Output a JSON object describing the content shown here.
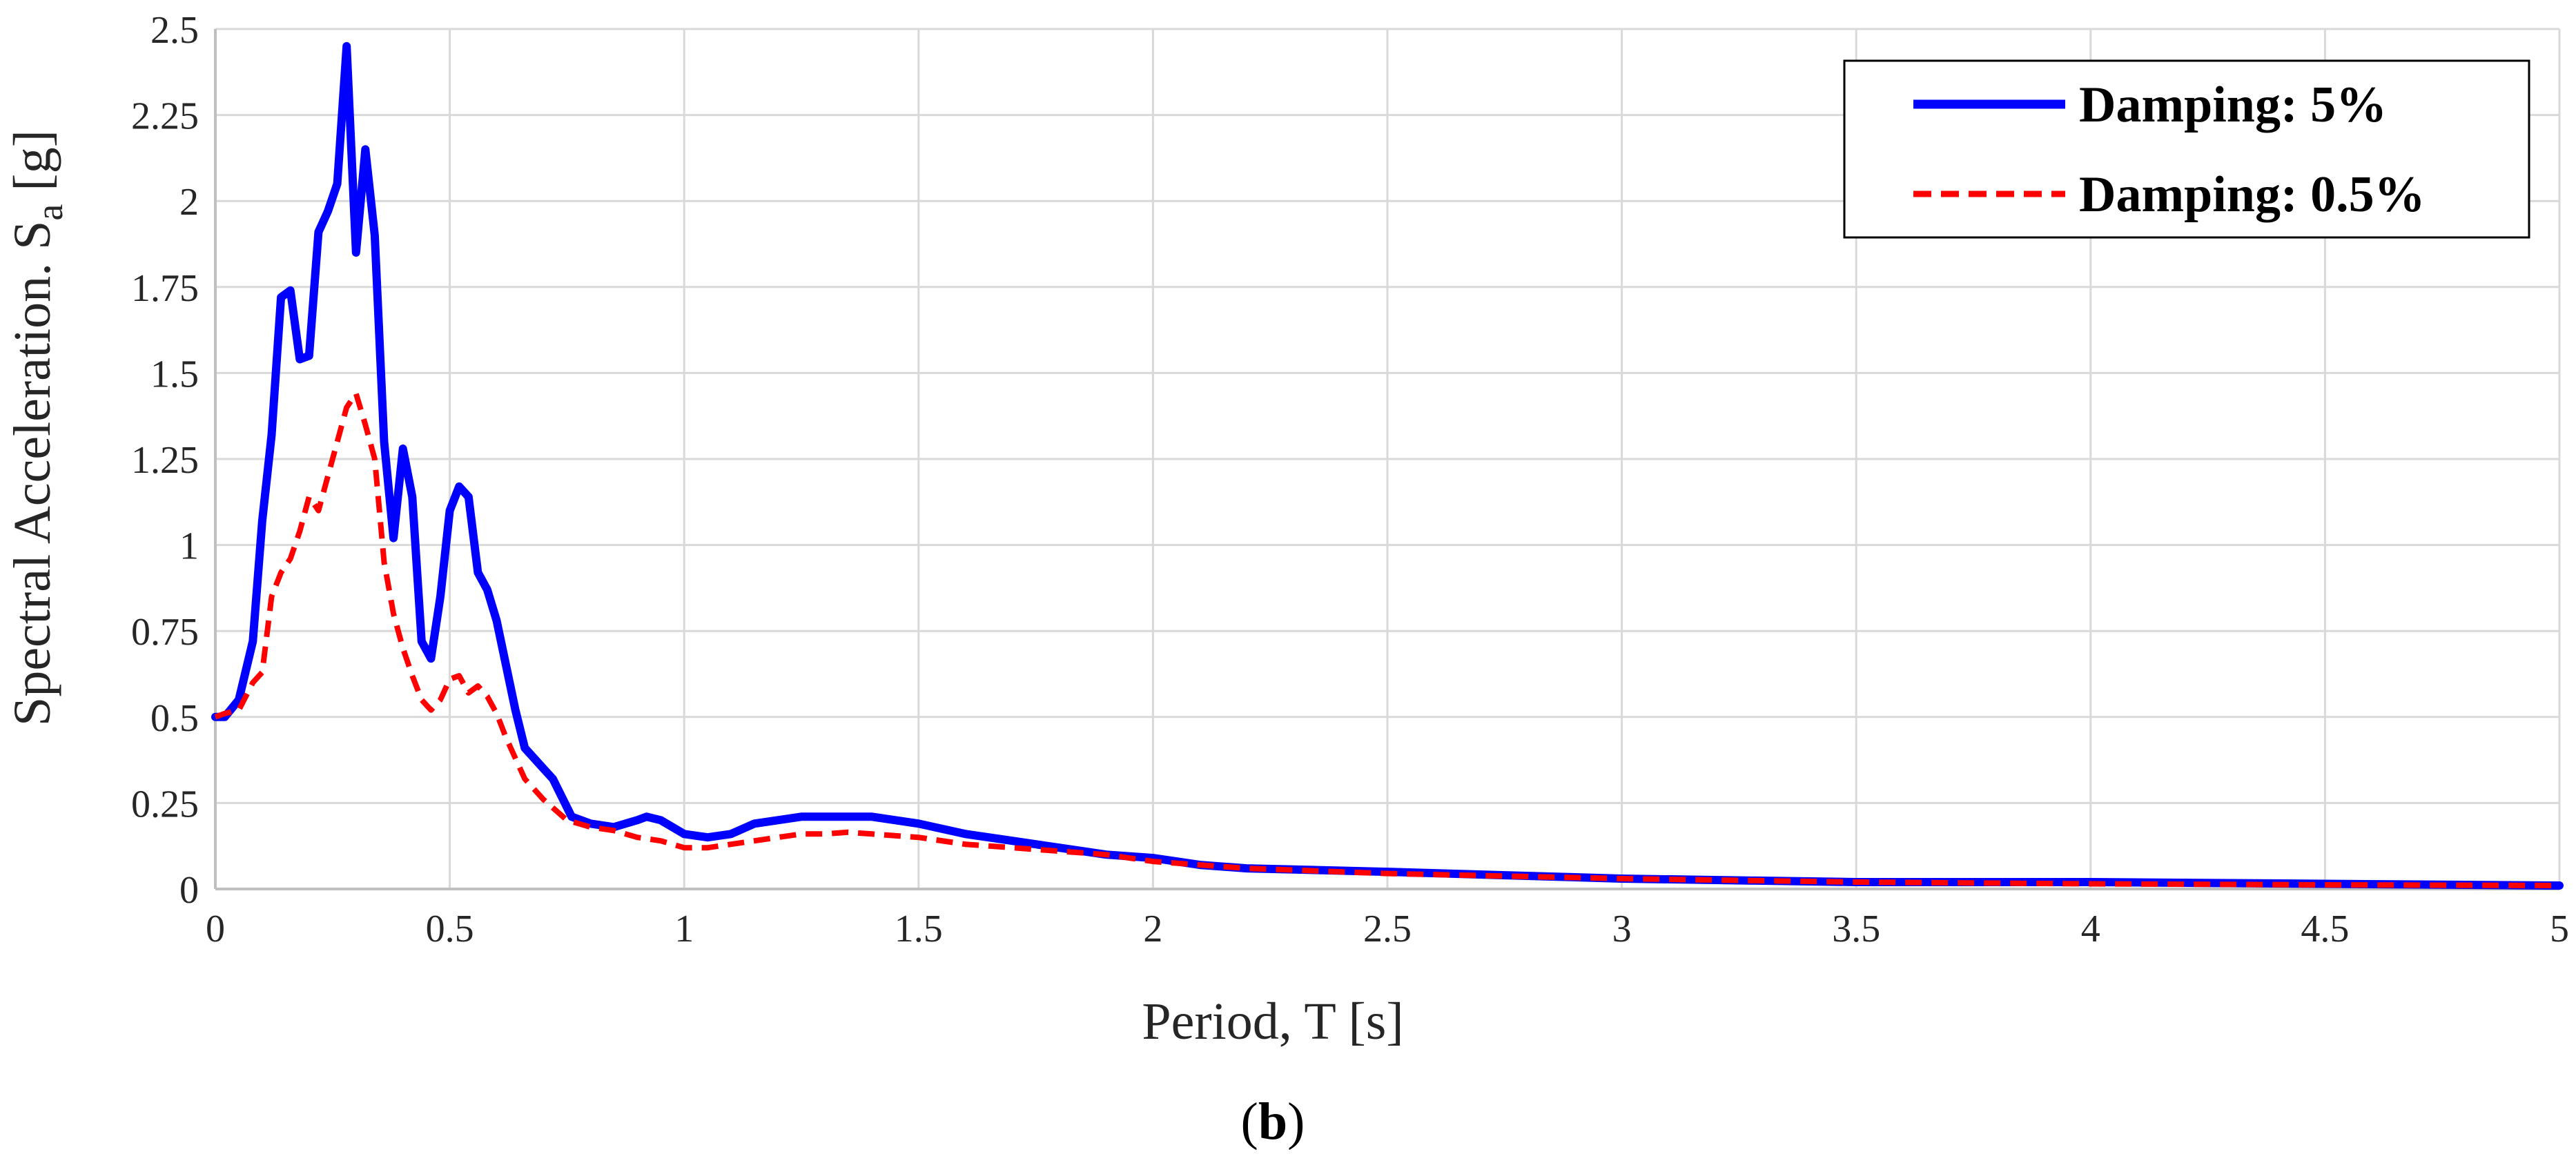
{
  "chart_data": {
    "type": "line",
    "xlabel": "Period, T [s]",
    "ylabel": "Spectral Acceleration. S",
    "ylabel_subscript": "a",
    "ylabel_suffix": " [g]",
    "caption": {
      "open": "(",
      "letter": "b",
      "close": ")"
    },
    "xlim": [
      0,
      5
    ],
    "ylim": [
      0,
      2.5
    ],
    "xticks": [
      0,
      0.5,
      1,
      1.5,
      2,
      2.5,
      3,
      3.5,
      4,
      4.5,
      5
    ],
    "xtick_labels": [
      "0",
      "0.5",
      "1",
      "1.5",
      "2",
      "2.5",
      "3",
      "3.5",
      "4",
      "4.5",
      "5"
    ],
    "yticks": [
      0,
      0.25,
      0.5,
      0.75,
      1,
      1.25,
      1.5,
      1.75,
      2,
      2.25,
      2.5
    ],
    "ytick_labels": [
      "0",
      "0.25",
      "0.5",
      "0.75",
      "1",
      "1.25",
      "1.5",
      "1.75",
      "2",
      "2.25",
      "2.5"
    ],
    "grid": true,
    "legend_position": "top-right",
    "colors": {
      "damping5": "#0000ff",
      "damping05": "#ff0000",
      "grid": "#d9d9d9",
      "axis": "#bfbfbf"
    },
    "series": [
      {
        "name": "Damping: 5%",
        "style": "solid",
        "x": [
          0,
          0.02,
          0.05,
          0.08,
          0.1,
          0.12,
          0.14,
          0.16,
          0.18,
          0.2,
          0.22,
          0.24,
          0.26,
          0.28,
          0.3,
          0.32,
          0.34,
          0.36,
          0.38,
          0.4,
          0.42,
          0.44,
          0.46,
          0.48,
          0.5,
          0.52,
          0.54,
          0.56,
          0.58,
          0.6,
          0.62,
          0.64,
          0.66,
          0.7,
          0.72,
          0.76,
          0.8,
          0.85,
          0.9,
          0.92,
          0.95,
          1.0,
          1.05,
          1.1,
          1.15,
          1.2,
          1.25,
          1.3,
          1.35,
          1.4,
          1.5,
          1.6,
          1.7,
          1.8,
          1.9,
          2.0,
          2.1,
          2.2,
          2.5,
          3.0,
          3.5,
          4.0,
          4.5,
          5.0
        ],
        "y": [
          0.5,
          0.5,
          0.55,
          0.72,
          1.07,
          1.32,
          1.72,
          1.74,
          1.54,
          1.55,
          1.91,
          1.97,
          2.05,
          2.45,
          1.85,
          2.15,
          1.9,
          1.3,
          1.02,
          1.28,
          1.14,
          0.72,
          0.67,
          0.85,
          1.1,
          1.17,
          1.14,
          0.92,
          0.87,
          0.78,
          0.65,
          0.52,
          0.41,
          0.35,
          0.32,
          0.21,
          0.19,
          0.18,
          0.2,
          0.21,
          0.2,
          0.16,
          0.15,
          0.16,
          0.19,
          0.2,
          0.21,
          0.21,
          0.21,
          0.21,
          0.19,
          0.16,
          0.14,
          0.12,
          0.1,
          0.09,
          0.07,
          0.06,
          0.05,
          0.03,
          0.02,
          0.02,
          0.015,
          0.01
        ]
      },
      {
        "name": "Damping: 0.5%",
        "style": "dashed",
        "x": [
          0,
          0.02,
          0.05,
          0.08,
          0.1,
          0.12,
          0.14,
          0.16,
          0.18,
          0.2,
          0.22,
          0.24,
          0.26,
          0.28,
          0.3,
          0.32,
          0.34,
          0.36,
          0.38,
          0.4,
          0.42,
          0.44,
          0.46,
          0.48,
          0.5,
          0.52,
          0.54,
          0.56,
          0.58,
          0.6,
          0.62,
          0.64,
          0.66,
          0.7,
          0.75,
          0.8,
          0.85,
          0.9,
          0.95,
          1.0,
          1.05,
          1.1,
          1.15,
          1.2,
          1.25,
          1.3,
          1.35,
          1.4,
          1.5,
          1.6,
          1.7,
          1.8,
          1.9,
          2.0,
          2.1,
          2.2,
          2.5,
          3.0,
          3.5,
          4.0,
          4.5,
          5.0
        ],
        "y": [
          0.5,
          0.51,
          0.52,
          0.6,
          0.63,
          0.85,
          0.92,
          0.96,
          1.04,
          1.14,
          1.1,
          1.2,
          1.3,
          1.4,
          1.44,
          1.35,
          1.25,
          0.95,
          0.8,
          0.7,
          0.62,
          0.55,
          0.52,
          0.55,
          0.61,
          0.62,
          0.57,
          0.59,
          0.56,
          0.51,
          0.44,
          0.38,
          0.32,
          0.26,
          0.2,
          0.18,
          0.17,
          0.15,
          0.14,
          0.12,
          0.12,
          0.13,
          0.14,
          0.15,
          0.16,
          0.16,
          0.165,
          0.16,
          0.15,
          0.13,
          0.12,
          0.11,
          0.1,
          0.08,
          0.07,
          0.06,
          0.045,
          0.03,
          0.02,
          0.015,
          0.012,
          0.01
        ]
      }
    ]
  }
}
